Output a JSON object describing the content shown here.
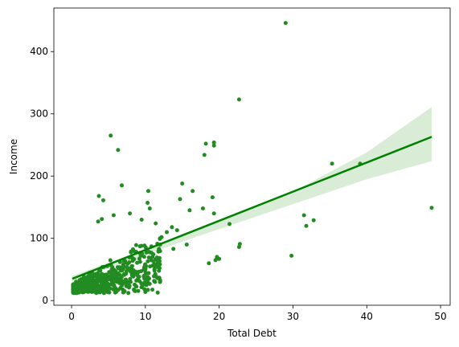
{
  "chart_data": {
    "type": "scatter",
    "title": "",
    "xlabel": "Total Debt",
    "ylabel": "Income",
    "xlim": [
      -2.4,
      51.3
    ],
    "ylim": [
      -7.5,
      470
    ],
    "xticks": [
      0,
      10,
      20,
      30,
      40,
      50
    ],
    "yticks": [
      0,
      100,
      200,
      300,
      400
    ],
    "grid": false,
    "colors": {
      "points": "#228B22",
      "regression_line": "#008000",
      "ci_band": "#d8ecd6"
    },
    "regression": {
      "x": [
        0.1,
        48.8
      ],
      "y": [
        35,
        263
      ],
      "ci_upper": [
        [
          0.1,
          40
        ],
        [
          10,
          82
        ],
        [
          20,
          126
        ],
        [
          30,
          175
        ],
        [
          40,
          238
        ],
        [
          48.8,
          311
        ]
      ],
      "ci_lower": [
        [
          0.1,
          30
        ],
        [
          10,
          74
        ],
        [
          20,
          115
        ],
        [
          30,
          155
        ],
        [
          40,
          195
        ],
        [
          48.8,
          224
        ]
      ]
    },
    "highlight_points": [
      [
        29.0,
        446
      ],
      [
        22.7,
        323
      ],
      [
        5.3,
        265
      ],
      [
        6.3,
        242
      ],
      [
        19.3,
        254
      ],
      [
        19.3,
        249
      ],
      [
        18.2,
        252
      ],
      [
        18.0,
        234
      ],
      [
        35.3,
        220
      ],
      [
        39.1,
        220
      ],
      [
        48.8,
        149
      ],
      [
        15.0,
        188
      ],
      [
        6.8,
        185
      ],
      [
        10.4,
        176
      ],
      [
        16.4,
        176
      ],
      [
        19.1,
        166
      ],
      [
        14.7,
        163
      ],
      [
        10.3,
        157
      ],
      [
        10.6,
        148
      ],
      [
        3.7,
        168
      ],
      [
        4.3,
        161
      ],
      [
        17.8,
        148
      ],
      [
        16.0,
        145
      ],
      [
        19.3,
        140
      ],
      [
        21.4,
        123
      ],
      [
        22.8,
        91
      ],
      [
        22.7,
        86
      ],
      [
        31.5,
        137
      ],
      [
        31.8,
        120
      ],
      [
        32.8,
        129
      ],
      [
        29.8,
        72
      ],
      [
        20.0,
        67
      ],
      [
        19.5,
        65
      ],
      [
        19.7,
        70
      ],
      [
        18.6,
        60
      ],
      [
        13.6,
        118
      ],
      [
        12.9,
        110
      ],
      [
        14.3,
        113
      ],
      [
        5.7,
        137
      ],
      [
        3.6,
        127
      ],
      [
        4.1,
        131
      ],
      [
        7.9,
        140
      ],
      [
        9.5,
        130
      ],
      [
        11.4,
        124
      ],
      [
        12.2,
        102
      ],
      [
        13.8,
        83
      ],
      [
        15.6,
        90
      ]
    ],
    "cluster_seed": 7,
    "cluster_count": 620
  }
}
